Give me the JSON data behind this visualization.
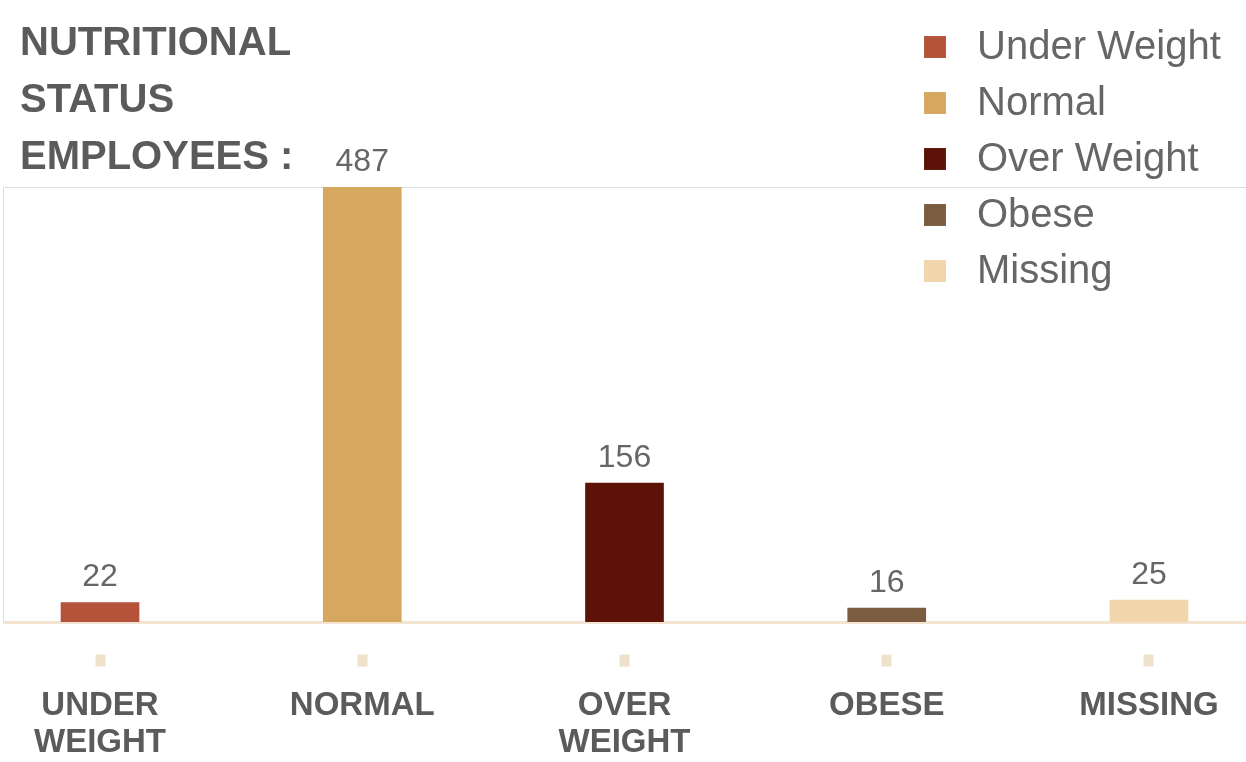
{
  "chart_data": {
    "type": "bar",
    "title": "NUTRITIONAL STATUS EMPLOYEES :",
    "categories": [
      "UNDER WEIGHT",
      "NORMAL",
      "OVER WEIGHT",
      "OBESE",
      "MISSING"
    ],
    "series": [
      {
        "name": "Under Weight",
        "color": "#b4523a",
        "values": [
          22,
          null,
          null,
          null,
          null
        ]
      },
      {
        "name": "Normal",
        "color": "#d6a75e",
        "values": [
          null,
          487,
          null,
          null,
          null
        ]
      },
      {
        "name": "Over Weight",
        "color": "#5c1206",
        "values": [
          null,
          null,
          156,
          null,
          null
        ]
      },
      {
        "name": "Obese",
        "color": "#7a5c40",
        "values": [
          null,
          null,
          null,
          16,
          null
        ]
      },
      {
        "name": "Missing",
        "color": "#f0d6aa",
        "values": [
          null,
          null,
          null,
          null,
          25
        ]
      }
    ],
    "data_labels": true,
    "legend": "top right",
    "tick_labels": "x"
  }
}
